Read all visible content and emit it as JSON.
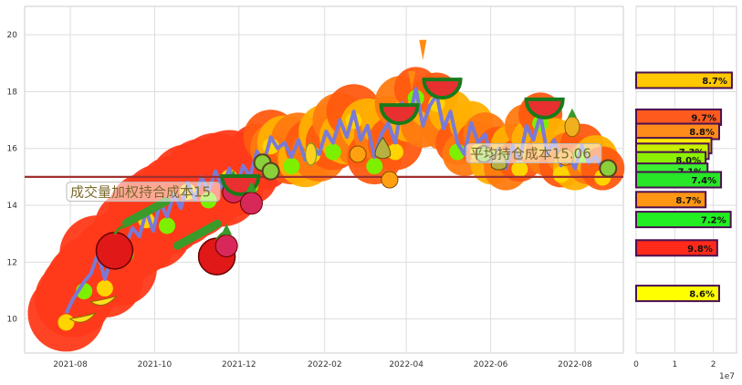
{
  "chart_data": [
    {
      "type": "line",
      "title": "",
      "xlabel": "",
      "ylabel": "",
      "ylim": [
        8.8,
        21
      ],
      "xlim": [
        "2021-06-29",
        "2022-09-05"
      ],
      "grid": true,
      "x_ticks": [
        "2021-08",
        "2021-10",
        "2021-12",
        "2022-02",
        "2022-04",
        "2022-06",
        "2022-08"
      ],
      "y_ticks": [
        10,
        12,
        14,
        16,
        18,
        20
      ],
      "series": [
        {
          "dates": [
            "2021-07-29",
            "2021-08-03",
            "2021-08-07",
            "2021-08-11",
            "2021-08-16",
            "2021-08-21",
            "2021-08-26",
            "2021-08-31",
            "2021-09-05",
            "2021-09-10",
            "2021-09-15",
            "2021-09-20",
            "2021-09-25",
            "2021-09-30",
            "2021-10-05",
            "2021-10-10",
            "2021-10-15",
            "2021-10-20",
            "2021-10-25",
            "2021-10-30",
            "2021-11-04",
            "2021-11-09",
            "2021-11-14",
            "2021-11-19",
            "2021-11-24",
            "2021-11-29",
            "2021-12-04",
            "2021-12-09",
            "2021-12-14",
            "2021-12-19",
            "2021-12-24",
            "2021-12-29",
            "2022-01-03",
            "2022-01-08",
            "2022-01-13",
            "2022-01-18",
            "2022-01-23",
            "2022-01-28",
            "2022-02-02",
            "2022-02-07",
            "2022-02-12",
            "2022-02-17",
            "2022-02-22",
            "2022-02-27",
            "2022-03-04",
            "2022-03-09",
            "2022-03-14",
            "2022-03-19",
            "2022-03-24",
            "2022-03-29",
            "2022-04-03",
            "2022-04-08",
            "2022-04-13",
            "2022-04-18",
            "2022-04-23",
            "2022-04-28",
            "2022-05-03",
            "2022-05-08",
            "2022-05-13",
            "2022-05-18",
            "2022-05-23",
            "2022-05-28",
            "2022-06-02",
            "2022-06-07",
            "2022-06-12",
            "2022-06-17",
            "2022-06-22",
            "2022-06-27",
            "2022-07-02",
            "2022-07-07",
            "2022-07-12",
            "2022-07-17",
            "2022-07-22",
            "2022-07-27",
            "2022-08-01",
            "2022-08-06",
            "2022-08-11",
            "2022-08-16",
            "2022-08-21"
          ],
          "values": [
            10.2,
            10.7,
            11.0,
            11.3,
            11.6,
            12.3,
            11.4,
            12.2,
            11.8,
            12.6,
            13.2,
            12.9,
            13.8,
            13.1,
            14.1,
            13.6,
            14.4,
            13.9,
            14.8,
            14.2,
            15.0,
            14.5,
            15.2,
            14.6,
            15.3,
            14.6,
            15.4,
            15.0,
            15.9,
            15.5,
            16.4,
            16.0,
            16.2,
            15.7,
            16.3,
            15.6,
            16.1,
            15.8,
            16.6,
            16.2,
            17.0,
            16.4,
            17.3,
            16.3,
            16.8,
            15.7,
            16.5,
            16.9,
            16.2,
            17.6,
            17.0,
            18.1,
            16.8,
            17.5,
            17.9,
            16.7,
            17.3,
            16.2,
            15.8,
            16.9,
            16.2,
            16.5,
            15.5,
            16.0,
            15.3,
            16.1,
            15.6,
            16.8,
            16.3,
            17.2,
            15.8,
            16.3,
            15.4,
            15.8,
            15.3,
            16.1,
            15.5,
            15.7,
            15.3
          ],
          "color": "#7a7ad6"
        }
      ],
      "horizontal_line": {
        "value": 15.0,
        "color": "#a0302e"
      },
      "annotations": [
        {
          "text": "成交量加权持合成本15",
          "x": "2021-08-01",
          "y": 14.4
        },
        {
          "text": "平均持仓成本15.06",
          "x": "2022-05-17",
          "y": 15.75
        }
      ],
      "decorations": [
        "banana-icon",
        "apple-icon",
        "pea-pod-icon",
        "radish-icon",
        "watermelon-icon",
        "kiwi-icon",
        "corn-icon",
        "pear-icon",
        "orange-icon",
        "carrot-icon",
        "pineapple-icon"
      ]
    },
    {
      "type": "bar",
      "orientation": "horizontal",
      "xlim": [
        0,
        26000000
      ],
      "x_ticks": [
        0,
        1,
        2
      ],
      "x_scale_label": "1e7",
      "bars": [
        {
          "y": 18.4,
          "value": 24800000,
          "label": "8.7%",
          "color": "#ffc800"
        },
        {
          "y": 17.1,
          "value": 22000000,
          "label": "9.7%",
          "color": "#ff5a1e"
        },
        {
          "y": 16.6,
          "value": 21500000,
          "label": "8.8%",
          "color": "#ff8c1a"
        },
        {
          "y": 16.1,
          "value": 19500000,
          "label": "8.5%",
          "color": "#ffe600"
        },
        {
          "y": 15.9,
          "value": 18800000,
          "label": "7.3%",
          "color": "#c8f000"
        },
        {
          "y": 15.6,
          "value": 18000000,
          "label": "8.0%",
          "color": "#8cf000"
        },
        {
          "y": 15.2,
          "value": 18500000,
          "label": "7.1%",
          "color": "#3cf032"
        },
        {
          "y": 14.9,
          "value": 22000000,
          "label": "7.4%",
          "color": "#28e628"
        },
        {
          "y": 14.2,
          "value": 18000000,
          "label": "8.7%",
          "color": "#ff9614"
        },
        {
          "y": 13.5,
          "value": 24500000,
          "label": "7.2%",
          "color": "#22ee22"
        },
        {
          "y": 12.5,
          "value": 21000000,
          "label": "9.8%",
          "color": "#ff2a1a"
        },
        {
          "y": 10.9,
          "value": 21500000,
          "label": "8.6%",
          "color": "#ffff00"
        }
      ]
    }
  ]
}
